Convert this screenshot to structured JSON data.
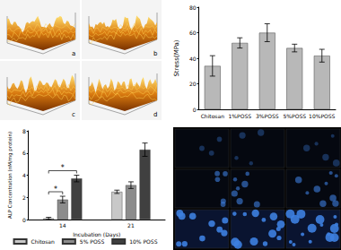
{
  "chart_data": [
    {
      "type": "bar",
      "ylabel": "Stress(MPa)",
      "categories": [
        "Chitosan",
        "1%POSS",
        "3%POSS",
        "5%POSS",
        "10%POSS"
      ],
      "values": [
        34,
        52,
        60,
        48,
        42
      ],
      "errors": [
        8,
        4,
        7,
        3,
        5
      ],
      "color": "#b8b8b8",
      "ylim": [
        0,
        80
      ],
      "yticks": [
        0,
        20,
        40,
        60,
        80
      ],
      "grid": false
    },
    {
      "type": "bar",
      "xlabel": "Incubation (Days)",
      "ylabel": "ALP Concentration (nM/mg protein)",
      "categories": [
        "14",
        "21"
      ],
      "series": [
        {
          "name": "Chitosan",
          "color": "#c8c8c8",
          "values": [
            0.1,
            2.5
          ],
          "errors": [
            0.1,
            0.15
          ]
        },
        {
          "name": "5% POSS",
          "color": "#8c8c8c",
          "values": [
            1.8,
            3.1
          ],
          "errors": [
            0.3,
            0.3
          ]
        },
        {
          "name": "10% POSS",
          "color": "#404040",
          "values": [
            3.7,
            6.3
          ],
          "errors": [
            0.3,
            0.6
          ]
        }
      ],
      "ylim": [
        0,
        8
      ],
      "yticks": [
        0,
        2,
        4,
        6,
        8
      ],
      "grid": false,
      "legend": "bottom",
      "annotations": [
        {
          "category": "14",
          "from": "Chitosan",
          "to": "5% POSS",
          "text": "*"
        },
        {
          "category": "14",
          "from": "Chitosan",
          "to": "10% POSS",
          "text": "*"
        }
      ]
    }
  ],
  "afm_images": {
    "labels": [
      "a",
      "b",
      "c",
      "d"
    ]
  }
}
